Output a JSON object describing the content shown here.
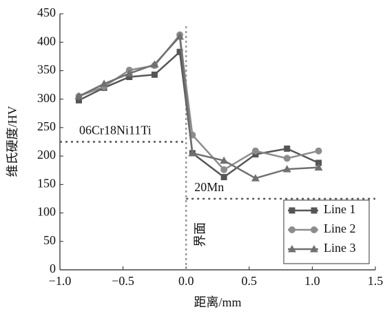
{
  "chart_data": {
    "type": "line",
    "x_label": "距离/mm",
    "y_label": "维氏硬度/HV",
    "x": [
      -0.85,
      -0.65,
      -0.45,
      -0.25,
      -0.05,
      0.05,
      0.3,
      0.55,
      0.8,
      1.05
    ],
    "series": [
      {
        "name": "Line 1",
        "color": "#555555",
        "marker": "square",
        "values": [
          298,
          320,
          339,
          343,
          383,
          205,
          163,
          203,
          213,
          188
        ]
      },
      {
        "name": "Line 2",
        "color": "#8c8c8c",
        "marker": "circle",
        "values": [
          305,
          322,
          351,
          359,
          413,
          237,
          176,
          209,
          196,
          209
        ]
      },
      {
        "name": "Line 3",
        "color": "#707070",
        "marker": "triangle",
        "values": [
          305,
          327,
          345,
          361,
          410,
          205,
          192,
          161,
          177,
          180
        ]
      }
    ],
    "xlim": [
      -1.0,
      1.5
    ],
    "xticks": [
      {
        "value": -1.0,
        "label": "−1.0"
      },
      {
        "value": -0.5,
        "label": "−0.5"
      },
      {
        "value": 0,
        "label": "0.0"
      },
      {
        "value": 0.5,
        "label": "0.5"
      },
      {
        "value": 1.0,
        "label": "1.0"
      },
      {
        "value": 1.5,
        "label": "1.5"
      }
    ],
    "ylim": [
      0,
      450
    ],
    "yticks": [
      0,
      50,
      100,
      150,
      200,
      250,
      300,
      350,
      400,
      450
    ],
    "reference_lines": [
      {
        "label": "06Cr18Ni11Ti",
        "y": 225,
        "from": -1.0,
        "to": 0
      },
      {
        "label": "20Mn",
        "y": 125,
        "from": 0,
        "to": 1.5
      }
    ],
    "interface": {
      "label": "界面",
      "x": 0
    },
    "legend": "lower right"
  }
}
